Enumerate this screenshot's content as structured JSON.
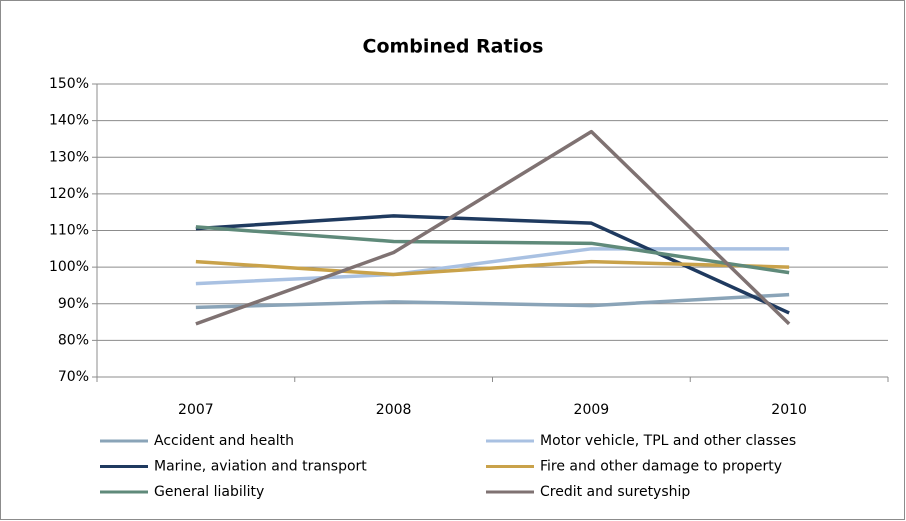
{
  "chart_data": {
    "type": "line",
    "title": "Combined Ratios",
    "categories": [
      "2007",
      "2008",
      "2009",
      "2010"
    ],
    "series": [
      {
        "name": "Accident and health",
        "color": "#8aa4b8",
        "values": [
          89,
          90.5,
          89.5,
          92.5
        ]
      },
      {
        "name": "Motor vehicle, TPL and other classes",
        "color": "#a9c1e2",
        "values": [
          95.5,
          98,
          105,
          105
        ]
      },
      {
        "name": "Marine, aviation and transport",
        "color": "#1f3a5f",
        "values": [
          110.5,
          114,
          112,
          87.5
        ]
      },
      {
        "name": "Fire and other damage to property",
        "color": "#c9a24a",
        "values": [
          101.5,
          98,
          101.5,
          100
        ]
      },
      {
        "name": "General liability",
        "color": "#5f8a7a",
        "values": [
          111,
          107,
          106.5,
          98.5
        ]
      },
      {
        "name": "Credit and suretyship",
        "color": "#7f7272",
        "values": [
          84.5,
          104,
          137,
          84.5
        ]
      }
    ],
    "ylim": [
      70,
      150
    ],
    "yticks": [
      {
        "value": 70,
        "label": "70%"
      },
      {
        "value": 80,
        "label": "80%"
      },
      {
        "value": 90,
        "label": "90%"
      },
      {
        "value": 100,
        "label": "100%"
      },
      {
        "value": 110,
        "label": "110%"
      },
      {
        "value": 120,
        "label": "120%"
      },
      {
        "value": 130,
        "label": "130%"
      },
      {
        "value": 140,
        "label": "140%"
      },
      {
        "value": 150,
        "label": "150%"
      }
    ],
    "grid": true
  }
}
